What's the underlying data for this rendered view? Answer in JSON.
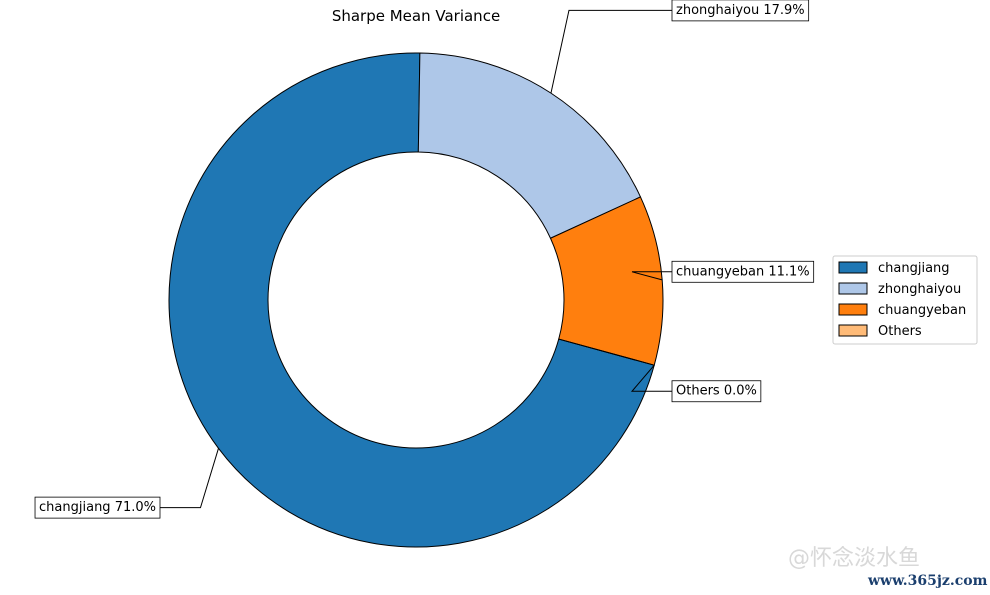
{
  "chart_data": {
    "type": "pie",
    "title": "Sharpe Mean Variance",
    "donut": true,
    "start_angle_deg": -15.3,
    "direction": "clockwise",
    "slices": [
      {
        "name": "changjiang",
        "value": 71.0,
        "label": "changjiang 71.0%",
        "color": "#1f77b4"
      },
      {
        "name": "zhonghaiyou",
        "value": 17.9,
        "label": "zhonghaiyou 17.9%",
        "color": "#aec7e8"
      },
      {
        "name": "chuangyeban",
        "value": 11.1,
        "label": "chuangyeban 11.1%",
        "color": "#ff7f0e"
      },
      {
        "name": "Others",
        "value": 0.0,
        "label": "Others 0.0%",
        "color": "#ffbb78"
      }
    ],
    "legend": {
      "placement": "right",
      "entries": [
        "changjiang",
        "zhonghaiyou",
        "chuangyeban",
        "Others"
      ]
    }
  },
  "watermark": {
    "line1": "@怀念淡水鱼",
    "line2": "www.365jz.com"
  }
}
